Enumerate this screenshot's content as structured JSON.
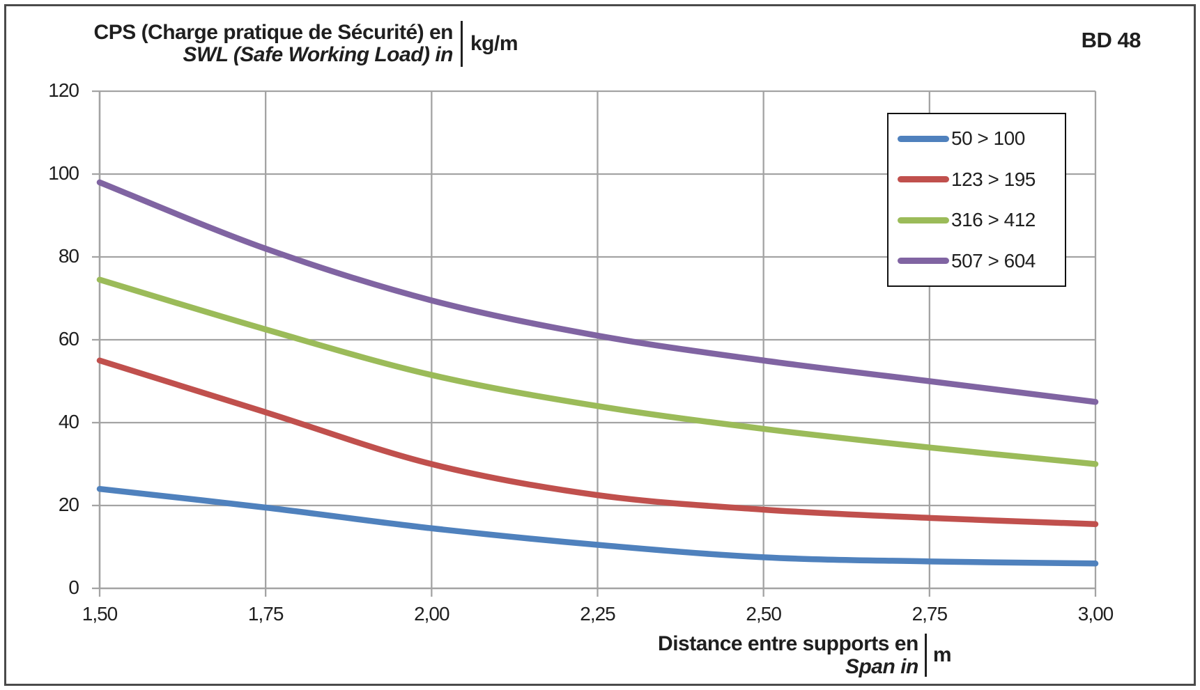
{
  "header": {
    "y_axis_title_line1": "CPS (Charge pratique de Sécurité) en",
    "y_axis_title_line2": "SWL (Safe Working Load) in",
    "y_axis_unit": "kg/m",
    "badge": "BD 48"
  },
  "x_axis_title": {
    "line1": "Distance entre supports en",
    "line2": "Span in",
    "unit": "m"
  },
  "chart_data": {
    "type": "line",
    "x": [
      1.5,
      1.75,
      2.0,
      2.25,
      2.5,
      2.75,
      3.0
    ],
    "x_tick_labels": [
      "1,50",
      "1,75",
      "2,00",
      "2,25",
      "2,50",
      "2,75",
      "3,00"
    ],
    "y_ticks": [
      0,
      20,
      40,
      60,
      80,
      100,
      120
    ],
    "y_tick_labels": [
      "0",
      "20",
      "40",
      "60",
      "80",
      "100",
      "120"
    ],
    "xlim": [
      1.5,
      3.0
    ],
    "ylim": [
      0,
      120
    ],
    "grid": true,
    "legend_position": "inside-top-right",
    "gridline_color": "#A3A3A3",
    "series": [
      {
        "name": "50 > 100",
        "color": "#4F81BD",
        "values": [
          24,
          19.5,
          14.5,
          10.5,
          7.5,
          6.5,
          6
        ]
      },
      {
        "name": "123 > 195",
        "color": "#C0504D",
        "values": [
          55,
          42.5,
          30,
          22.5,
          19,
          17,
          15.5
        ]
      },
      {
        "name": "316 > 412",
        "color": "#9BBB59",
        "values": [
          74.5,
          62.5,
          51.5,
          44,
          38.5,
          34,
          30
        ]
      },
      {
        "name": "507 > 604",
        "color": "#8064A2",
        "values": [
          98,
          82,
          69.5,
          61,
          55,
          50,
          45
        ]
      }
    ]
  }
}
